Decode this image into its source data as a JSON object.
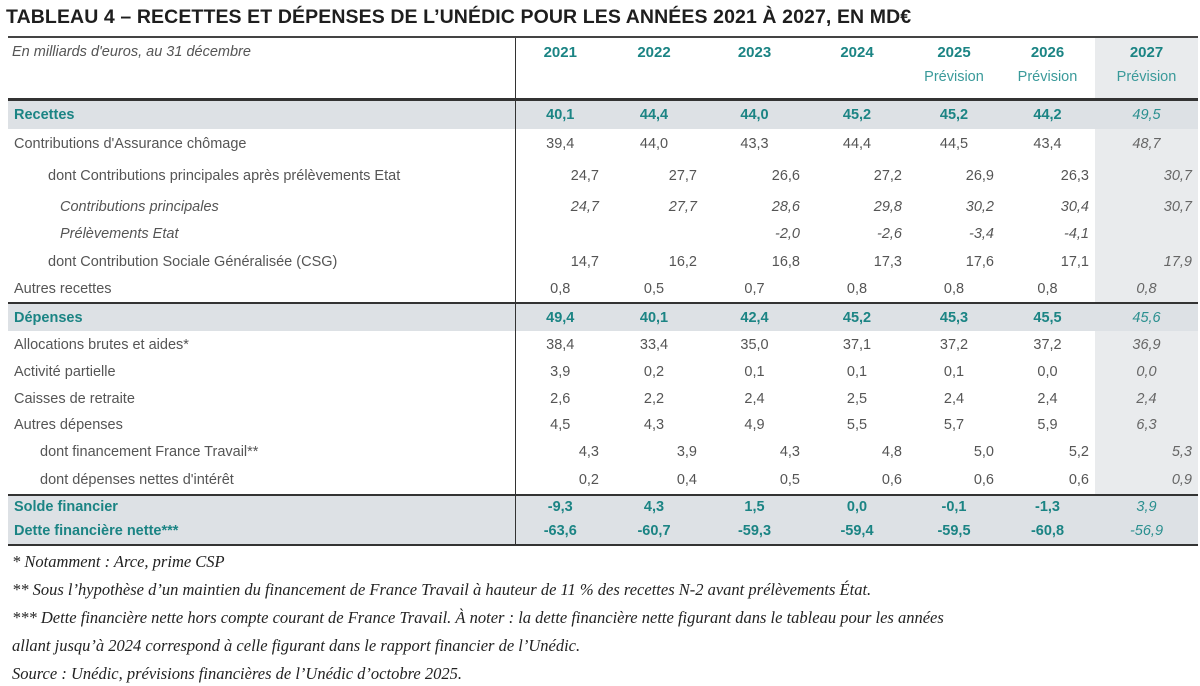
{
  "title": "TABLEAU 4 – RECETTES ET DÉPENSES DE L’UNÉDIC POUR LES ANNÉES 2021 À 2027, EN MD€",
  "header": {
    "unit_label": "En milliards d'euros, au 31 décembre",
    "years": [
      "2021",
      "2022",
      "2023",
      "2024",
      "2025",
      "2026",
      "2027"
    ],
    "forecast": [
      "",
      "",
      "",
      "",
      "Prévision",
      "Prévision",
      "Prévision"
    ]
  },
  "rows": [
    {
      "label": "Recettes",
      "values": [
        "40,1",
        "44,4",
        "44,0",
        "45,2",
        "45,2",
        "44,2",
        "49,5"
      ]
    },
    {
      "label": "Contributions d'Assurance chômage",
      "values": [
        "39,4",
        "44,0",
        "43,3",
        "44,4",
        "44,5",
        "43,4",
        "48,7"
      ]
    },
    {
      "label": "dont Contributions principales après prélèvements Etat",
      "values": [
        "24,7",
        "27,7",
        "26,6",
        "27,2",
        "26,9",
        "26,3",
        "30,7"
      ]
    },
    {
      "label": "Contributions principales",
      "values": [
        "24,7",
        "27,7",
        "28,6",
        "29,8",
        "30,2",
        "30,4",
        "30,7"
      ]
    },
    {
      "label": "Prélèvements Etat",
      "values": [
        "",
        "",
        "-2,0",
        "-2,6",
        "-3,4",
        "-4,1",
        ""
      ]
    },
    {
      "label": "dont Contribution Sociale Généralisée (CSG)",
      "values": [
        "14,7",
        "16,2",
        "16,8",
        "17,3",
        "17,6",
        "17,1",
        "17,9"
      ]
    },
    {
      "label": "Autres recettes",
      "values": [
        "0,8",
        "0,5",
        "0,7",
        "0,8",
        "0,8",
        "0,8",
        "0,8"
      ]
    },
    {
      "label": "Dépenses",
      "values": [
        "49,4",
        "40,1",
        "42,4",
        "45,2",
        "45,3",
        "45,5",
        "45,6"
      ]
    },
    {
      "label": "Allocations brutes et aides*",
      "values": [
        "38,4",
        "33,4",
        "35,0",
        "37,1",
        "37,2",
        "37,2",
        "36,9"
      ]
    },
    {
      "label": "Activité partielle",
      "values": [
        "3,9",
        "0,2",
        "0,1",
        "0,1",
        "0,1",
        "0,0",
        "0,0"
      ]
    },
    {
      "label": "Caisses de retraite",
      "values": [
        "2,6",
        "2,2",
        "2,4",
        "2,5",
        "2,4",
        "2,4",
        "2,4"
      ]
    },
    {
      "label": "Autres dépenses",
      "values": [
        "4,5",
        "4,3",
        "4,9",
        "5,5",
        "5,7",
        "5,9",
        "6,3"
      ]
    },
    {
      "label": "dont financement France Travail**",
      "values": [
        "4,3",
        "3,9",
        "4,3",
        "4,8",
        "5,0",
        "5,2",
        "5,3"
      ]
    },
    {
      "label": "dont dépenses nettes d'intérêt",
      "values": [
        "0,2",
        "0,4",
        "0,5",
        "0,6",
        "0,6",
        "0,6",
        "0,9"
      ]
    },
    {
      "label": "Solde financier",
      "values": [
        "-9,3",
        "4,3",
        "1,5",
        "0,0",
        "-0,1",
        "-1,3",
        "3,9"
      ]
    },
    {
      "label": "Dette financière nette***",
      "values": [
        "-63,6",
        "-60,7",
        "-59,3",
        "-59,4",
        "-59,5",
        "-60,8",
        "-56,9"
      ]
    }
  ],
  "footnotes": [
    "* Notamment : Arce, prime CSP",
    "** Sous l’hypothèse d’un maintien du financement de France Travail à hauteur de 11 % des recettes N-2 avant prélèvements État.",
    "*** Dette financière nette hors compte courant de France Travail. À noter : la dette financière nette figurant dans le tableau pour les années",
    "allant jusqu’à 2024 correspond à celle figurant dans le rapport financier de l’Unédic.",
    "Source : Unédic, prévisions financières de l’Unédic d’octobre 2025."
  ]
}
